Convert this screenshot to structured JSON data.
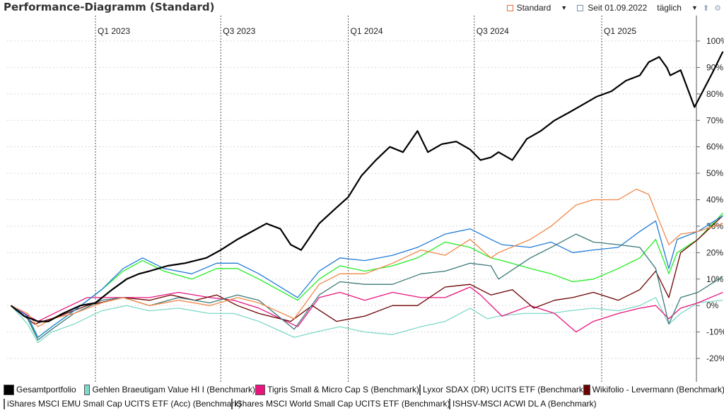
{
  "header": {
    "title": "Performance-Diagramm (Standard)",
    "view_label": "Standard",
    "date_label": "Seit 01.09.2022",
    "interval_label": "täglich"
  },
  "icons": [
    "settings-square-icon",
    "calendar-icon",
    "export-icon",
    "gear-icon"
  ],
  "chart_data": {
    "type": "line",
    "ylim": [
      -25,
      105
    ],
    "yticks": [
      -20,
      -10,
      0,
      10,
      20,
      30,
      40,
      50,
      60,
      70,
      80,
      90,
      100
    ],
    "ytick_labels": [
      "-20%",
      "-10%",
      "0%",
      "10%",
      "20%",
      "30%",
      "40%",
      "50%",
      "60%",
      "70%",
      "80%",
      "90%",
      "100%"
    ],
    "xlim": [
      "2022-09-01",
      "2025-07-15"
    ],
    "quarter_markers": [
      {
        "date": "2023-01-01",
        "label": "Q1 2023"
      },
      {
        "date": "2023-07-01",
        "label": "Q3 2023"
      },
      {
        "date": "2024-01-01",
        "label": "Q1 2024"
      },
      {
        "date": "2024-07-01",
        "label": "Q3 2024"
      },
      {
        "date": "2025-01-01",
        "label": "Q1 2025"
      }
    ],
    "grid": true,
    "legend_position": "bottom",
    "series": [
      {
        "name": "Gesamtportfolio",
        "color": "#000000",
        "width": 2.2,
        "x": [
          "2022-09-01",
          "2022-09-20",
          "2022-10-10",
          "2022-10-25",
          "2022-11-15",
          "2022-12-10",
          "2023-01-01",
          "2023-01-25",
          "2023-02-15",
          "2023-03-05",
          "2023-03-20",
          "2023-04-15",
          "2023-05-10",
          "2023-06-10",
          "2023-07-01",
          "2023-07-25",
          "2023-08-15",
          "2023-09-05",
          "2023-09-25",
          "2023-10-10",
          "2023-10-25",
          "2023-11-20",
          "2023-12-15",
          "2024-01-01",
          "2024-01-20",
          "2024-02-10",
          "2024-03-01",
          "2024-03-20",
          "2024-04-10",
          "2024-04-25",
          "2024-05-15",
          "2024-06-05",
          "2024-06-25",
          "2024-07-10",
          "2024-07-25",
          "2024-08-05",
          "2024-08-25",
          "2024-09-15",
          "2024-10-05",
          "2024-10-25",
          "2024-11-15",
          "2024-12-05",
          "2024-12-25",
          "2025-01-15",
          "2025-02-05",
          "2025-02-25",
          "2025-03-10",
          "2025-03-25",
          "2025-04-05",
          "2025-04-10",
          "2025-04-25",
          "2025-05-15",
          "2025-06-10",
          "2025-06-25"
        ],
        "y": [
          0,
          -4,
          -6,
          -6,
          -3,
          0,
          1,
          6,
          10,
          12,
          13,
          15,
          16,
          18,
          21,
          25,
          28,
          31,
          29,
          23,
          21,
          31,
          37,
          41,
          49,
          55,
          60,
          58,
          66,
          58,
          61,
          62,
          59,
          55,
          56,
          58,
          55,
          63,
          66,
          70,
          73,
          76,
          79,
          81,
          85,
          87,
          92,
          94,
          90,
          87,
          89,
          75,
          88,
          96
        ]
      },
      {
        "name": "Gehlen Braeutigam Value HI I (Benchmark)",
        "color": "#7fd8c8",
        "width": 1.3,
        "x": [
          "2022-09-01",
          "2022-09-25",
          "2022-10-10",
          "2022-10-30",
          "2022-12-01",
          "2023-01-10",
          "2023-02-15",
          "2023-03-20",
          "2023-05-01",
          "2023-06-15",
          "2023-07-20",
          "2023-08-25",
          "2023-10-15",
          "2023-11-15",
          "2023-12-20",
          "2024-01-25",
          "2024-03-05",
          "2024-04-15",
          "2024-05-20",
          "2024-06-25",
          "2024-07-20",
          "2024-08-05",
          "2024-09-10",
          "2024-10-20",
          "2024-11-15",
          "2024-12-20",
          "2025-01-25",
          "2025-02-25",
          "2025-03-20",
          "2025-04-08",
          "2025-04-25",
          "2025-05-20",
          "2025-06-25"
        ],
        "y": [
          0,
          -7,
          -14,
          -10,
          -7,
          -2,
          0,
          -2,
          -1,
          -3,
          -3,
          -6,
          -12,
          -10,
          -8,
          -10,
          -11,
          -8,
          -6,
          -1,
          -5,
          -4,
          -3,
          -3,
          -2,
          -1,
          -2,
          0,
          3,
          -7,
          -3,
          1,
          2
        ]
      },
      {
        "name": "Tigris Small & Micro Cap S (Benchmark)",
        "color": "#e8157f",
        "width": 1.3,
        "x": [
          "2022-09-01",
          "2022-10-10",
          "2022-11-10",
          "2022-12-20",
          "2023-02-15",
          "2023-03-20",
          "2023-05-01",
          "2023-06-15",
          "2023-07-20",
          "2023-08-25",
          "2023-10-20",
          "2023-11-20",
          "2023-12-20",
          "2024-01-25",
          "2024-03-05",
          "2024-04-15",
          "2024-05-20",
          "2024-06-25",
          "2024-07-10",
          "2024-08-10",
          "2024-09-20",
          "2024-10-25",
          "2024-11-25",
          "2024-12-20",
          "2025-01-25",
          "2025-02-25",
          "2025-03-20",
          "2025-04-08",
          "2025-04-25",
          "2025-05-20",
          "2025-06-25"
        ],
        "y": [
          0,
          -6,
          -2,
          3,
          3,
          3,
          5,
          3,
          2,
          -1,
          -8,
          3,
          5,
          2,
          5,
          3,
          3,
          7,
          4,
          -4,
          0,
          -3,
          -10,
          -6,
          -3,
          -1,
          0,
          -5,
          -1,
          1,
          5
        ]
      },
      {
        "name": "Lyxor SDAX (DR) UCITS ETF (Benchmark)",
        "color": "#22ee22",
        "width": 1.3,
        "x": [
          "2022-09-01",
          "2022-09-25",
          "2022-10-10",
          "2022-10-30",
          "2022-12-01",
          "2023-01-10",
          "2023-02-10",
          "2023-03-10",
          "2023-04-10",
          "2023-05-20",
          "2023-06-25",
          "2023-07-25",
          "2023-08-25",
          "2023-10-20",
          "2023-11-20",
          "2023-12-20",
          "2024-01-25",
          "2024-03-05",
          "2024-04-10",
          "2024-05-20",
          "2024-06-25",
          "2024-07-25",
          "2024-08-10",
          "2024-09-20",
          "2024-10-20",
          "2024-11-20",
          "2024-12-20",
          "2025-01-25",
          "2025-02-25",
          "2025-03-20",
          "2025-04-08",
          "2025-04-20",
          "2025-05-20",
          "2025-06-25"
        ],
        "y": [
          0,
          -5,
          -12,
          -8,
          -2,
          6,
          13,
          17,
          13,
          10,
          14,
          14,
          10,
          2,
          10,
          15,
          13,
          15,
          18,
          24,
          22,
          18,
          17,
          14,
          12,
          9,
          10,
          14,
          18,
          25,
          12,
          20,
          25,
          35
        ]
      },
      {
        "name": "Wikifolio - Levermann (Benchmark)",
        "color": "#6b0000",
        "width": 1.3,
        "x": [
          "2022-09-01",
          "2022-10-05",
          "2022-11-10",
          "2022-12-20",
          "2023-02-10",
          "2023-03-20",
          "2023-04-20",
          "2023-05-25",
          "2023-06-25",
          "2023-07-25",
          "2023-08-25",
          "2023-10-10",
          "2023-11-10",
          "2023-12-15",
          "2024-01-25",
          "2024-03-05",
          "2024-04-10",
          "2024-05-20",
          "2024-06-25",
          "2024-07-25",
          "2024-08-25",
          "2024-09-25",
          "2024-10-25",
          "2024-11-20",
          "2024-12-20",
          "2025-01-25",
          "2025-02-25",
          "2025-03-20",
          "2025-04-08",
          "2025-04-25",
          "2025-05-20",
          "2025-06-25"
        ],
        "y": [
          0,
          -7,
          -4,
          0,
          3,
          2,
          4,
          2,
          4,
          0,
          -3,
          -6,
          0,
          -6,
          -4,
          0,
          0,
          7,
          8,
          4,
          6,
          -1,
          2,
          3,
          5,
          2,
          6,
          13,
          3,
          20,
          25,
          34
        ]
      },
      {
        "name": "iShares MSCI EMU Small Cap UCITS ETF (Acc) (Benchmark)",
        "color": "#1f7bd8",
        "width": 1.3,
        "x": [
          "2022-09-01",
          "2022-09-25",
          "2022-10-10",
          "2022-10-30",
          "2022-12-01",
          "2023-01-10",
          "2023-02-10",
          "2023-03-10",
          "2023-04-10",
          "2023-05-20",
          "2023-06-25",
          "2023-07-25",
          "2023-08-25",
          "2023-10-20",
          "2023-11-20",
          "2023-12-20",
          "2024-01-25",
          "2024-03-05",
          "2024-04-10",
          "2024-05-20",
          "2024-06-25",
          "2024-07-25",
          "2024-08-10",
          "2024-09-20",
          "2024-10-20",
          "2024-11-20",
          "2024-12-20",
          "2025-01-25",
          "2025-02-25",
          "2025-03-20",
          "2025-04-08",
          "2025-04-20",
          "2025-05-20",
          "2025-06-25"
        ],
        "y": [
          0,
          -4,
          -12,
          -8,
          -2,
          6,
          14,
          18,
          14,
          12,
          16,
          16,
          12,
          3,
          13,
          18,
          17,
          19,
          22,
          27,
          29,
          25,
          23,
          22,
          24,
          20,
          21,
          22,
          28,
          32,
          14,
          25,
          28,
          34
        ]
      },
      {
        "name": "iShares MSCI World Small Cap UCITS ETF (Benchmark)",
        "color": "#3d7878",
        "width": 1.3,
        "x": [
          "2022-09-01",
          "2022-09-25",
          "2022-10-10",
          "2022-10-30",
          "2022-12-01",
          "2023-01-10",
          "2023-02-10",
          "2023-03-20",
          "2023-05-01",
          "2023-06-15",
          "2023-07-25",
          "2023-08-25",
          "2023-10-15",
          "2023-11-20",
          "2023-12-20",
          "2024-01-25",
          "2024-03-05",
          "2024-04-15",
          "2024-05-20",
          "2024-06-25",
          "2024-07-25",
          "2024-08-05",
          "2024-09-20",
          "2024-10-20",
          "2024-11-25",
          "2024-12-20",
          "2025-01-25",
          "2025-02-25",
          "2025-03-20",
          "2025-04-08",
          "2025-04-25",
          "2025-05-20",
          "2025-06-25"
        ],
        "y": [
          0,
          -5,
          -13,
          -9,
          -3,
          2,
          3,
          0,
          3,
          1,
          4,
          2,
          -9,
          4,
          9,
          8,
          8,
          12,
          13,
          16,
          15,
          10,
          18,
          22,
          27,
          24,
          23,
          22,
          14,
          -7,
          3,
          5,
          11
        ]
      },
      {
        "name": "ISHSV-MSCI ACWI DL A (Benchmark)",
        "color": "#f08848",
        "width": 1.3,
        "x": [
          "2022-09-01",
          "2022-09-25",
          "2022-10-10",
          "2022-10-30",
          "2022-12-01",
          "2023-01-10",
          "2023-02-10",
          "2023-03-20",
          "2023-05-01",
          "2023-06-15",
          "2023-07-25",
          "2023-08-25",
          "2023-10-15",
          "2023-11-20",
          "2023-12-20",
          "2024-01-25",
          "2024-03-05",
          "2024-04-15",
          "2024-05-20",
          "2024-06-25",
          "2024-07-25",
          "2024-08-05",
          "2024-09-20",
          "2024-10-20",
          "2024-11-25",
          "2024-12-20",
          "2025-01-25",
          "2025-02-20",
          "2025-03-10",
          "2025-03-25",
          "2025-04-08",
          "2025-04-25",
          "2025-05-20",
          "2025-06-25"
        ],
        "y": [
          0,
          -3,
          -8,
          -5,
          -3,
          1,
          3,
          0,
          2,
          0,
          3,
          1,
          -5,
          8,
          12,
          12,
          16,
          21,
          19,
          25,
          18,
          20,
          25,
          30,
          38,
          40,
          40,
          44,
          42,
          32,
          23,
          27,
          28,
          31
        ]
      }
    ]
  }
}
